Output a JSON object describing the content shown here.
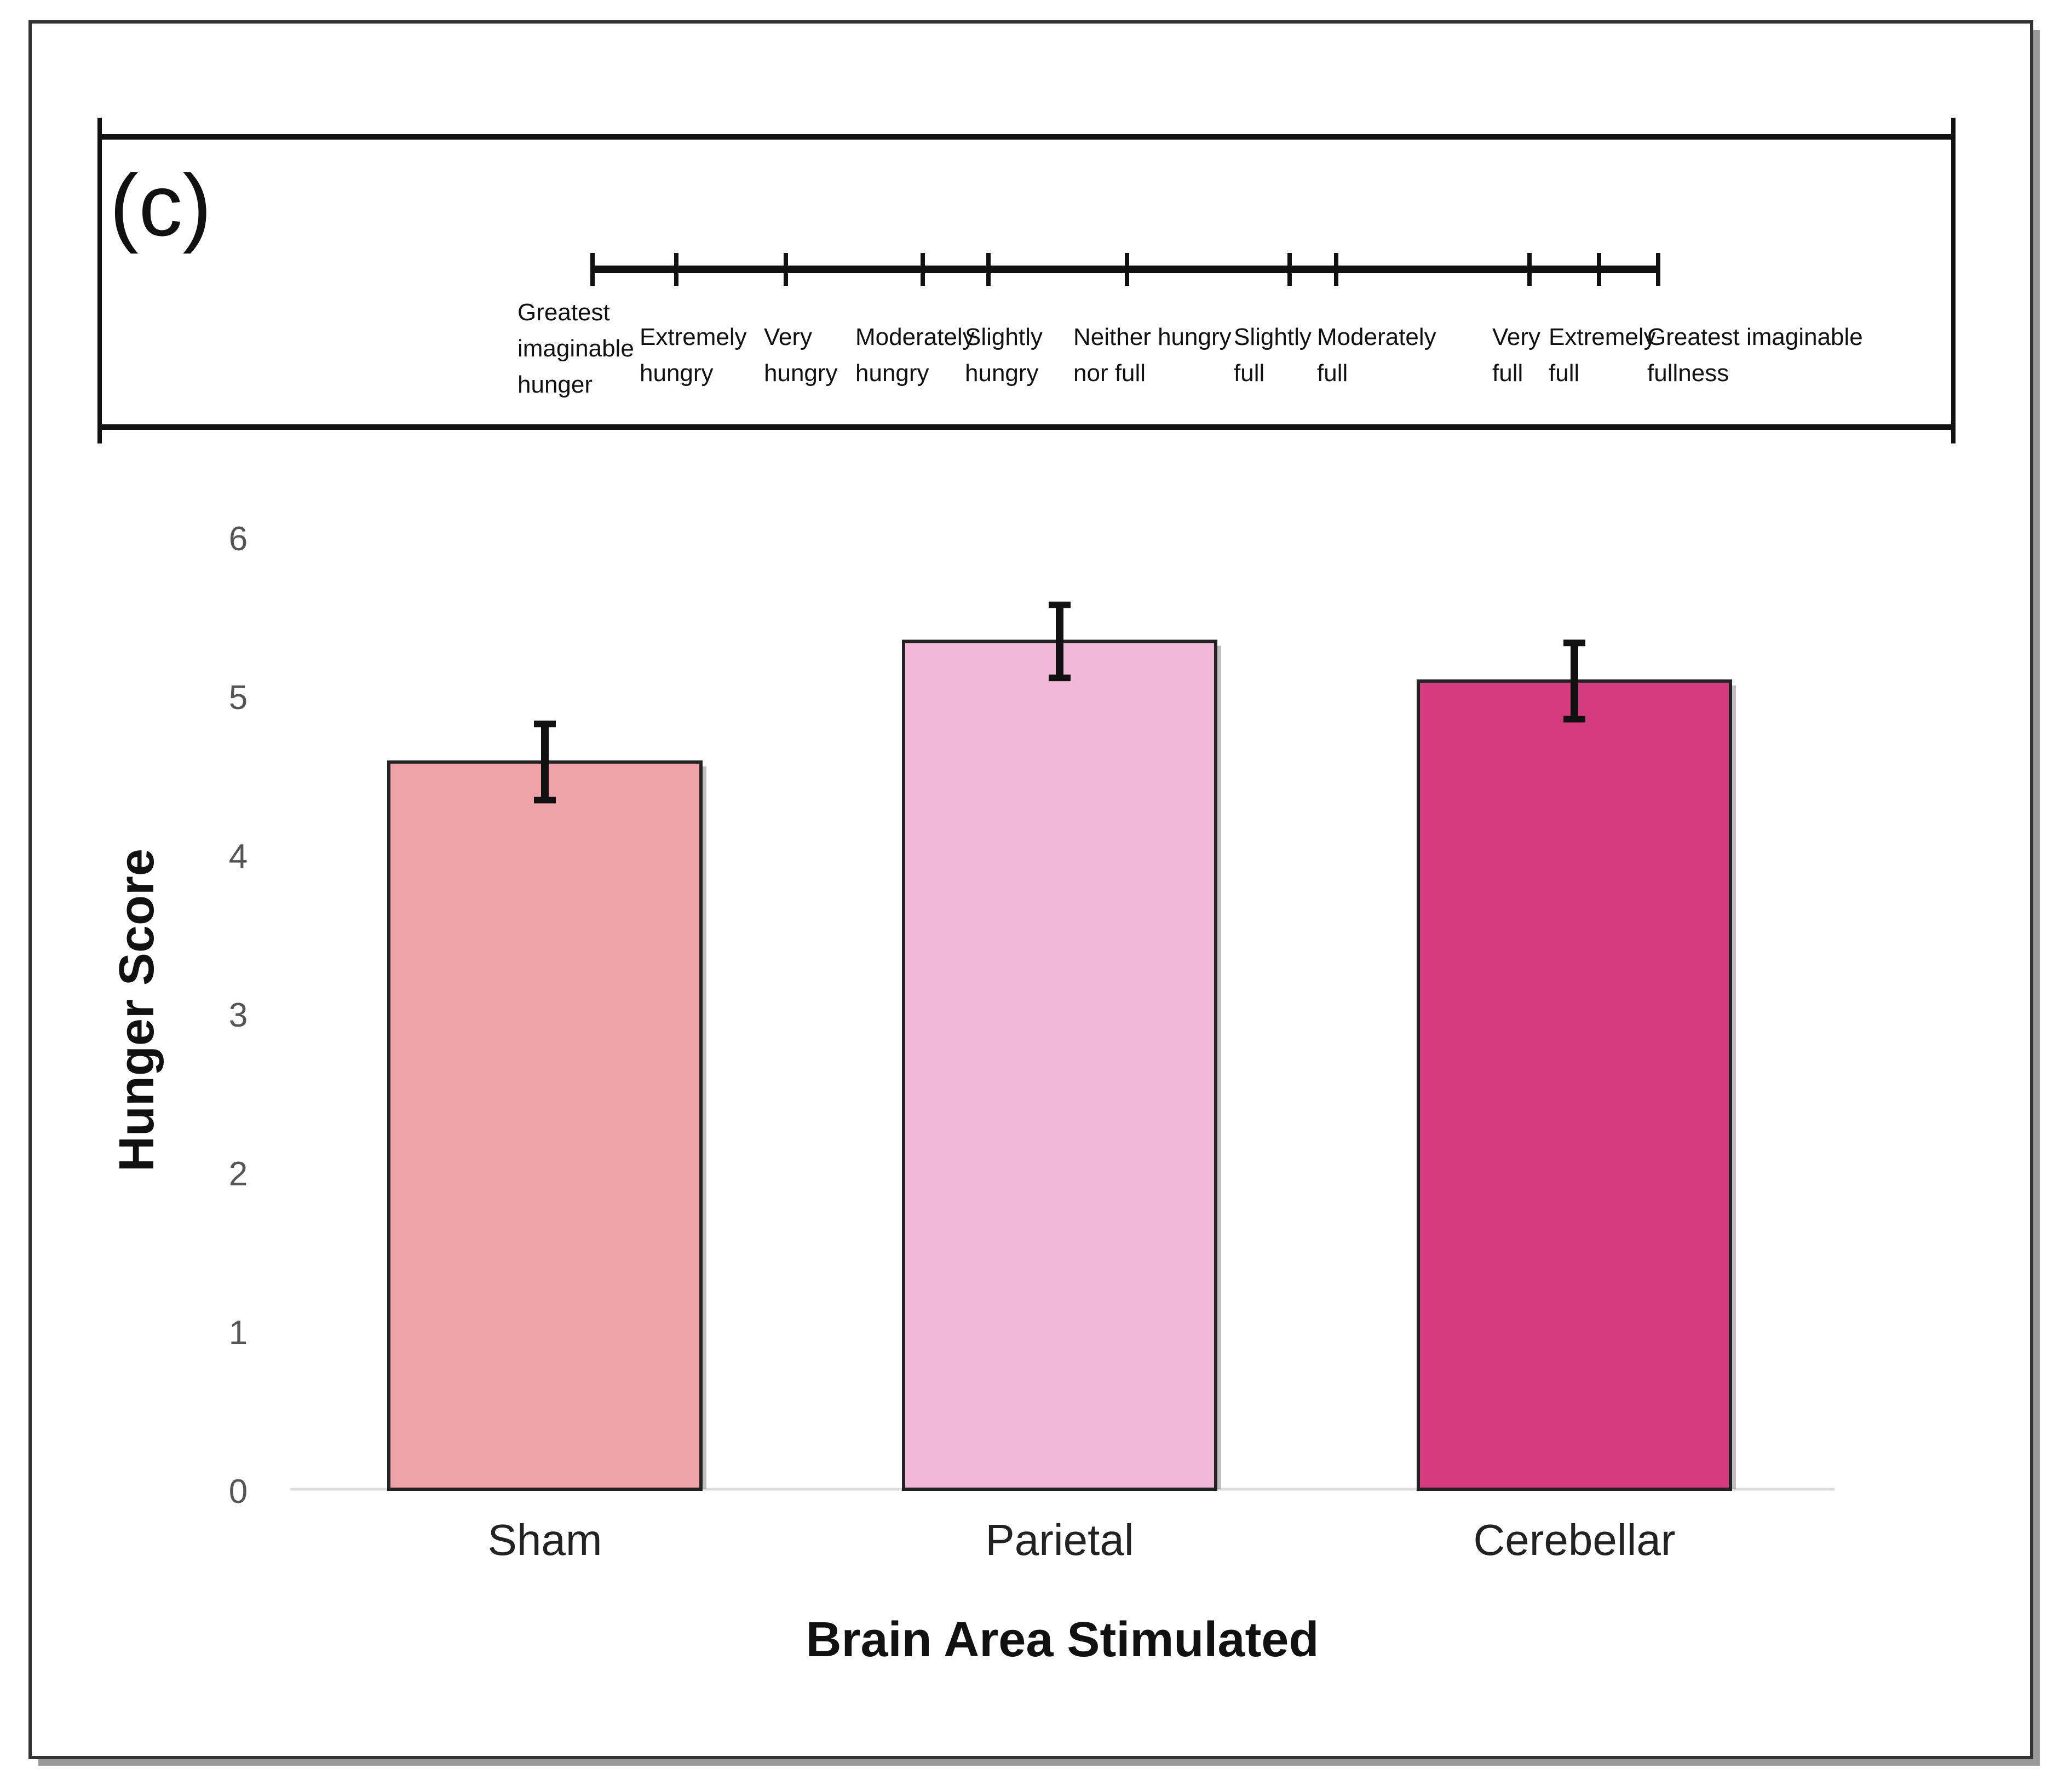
{
  "panel_label": "(c)",
  "scale": {
    "anchors": [
      {
        "position": 0,
        "lines": [
          "Greatest",
          "imaginable",
          "hunger"
        ]
      },
      {
        "position": 1,
        "lines": [
          "Extremely",
          "hungry"
        ]
      },
      {
        "position": 2,
        "lines": [
          "Very",
          "hungry"
        ]
      },
      {
        "position": 3,
        "lines": [
          "Moderately",
          "hungry"
        ]
      },
      {
        "position": 4,
        "lines": [
          "Slightly",
          "hungry"
        ]
      },
      {
        "position": 5,
        "lines": [
          "Neither hungry",
          "nor full"
        ]
      },
      {
        "position": 6,
        "lines": [
          "Slightly",
          "full"
        ]
      },
      {
        "position": 7,
        "lines": [
          "Moderately",
          "full"
        ]
      },
      {
        "position": 8,
        "lines": [
          "Very",
          "full"
        ]
      },
      {
        "position": 9,
        "lines": [
          "Extremely",
          "full"
        ]
      },
      {
        "position": 10,
        "lines": [
          "Greatest imaginable",
          "fullness"
        ]
      }
    ]
  },
  "chart_data": {
    "type": "bar",
    "categories": [
      "Sham",
      "Parietal",
      "Cerebellar"
    ],
    "values": [
      4.58,
      5.34,
      5.09
    ],
    "errors": [
      0.24,
      0.23,
      0.24
    ],
    "colors": [
      "#efa3a9",
      "#f0b7d6",
      "#d63b80"
    ],
    "xlabel": "Brain Area Stimulated",
    "ylabel": "Hunger Score",
    "ylim": [
      0,
      6
    ],
    "yticks": [
      0,
      1,
      2,
      3,
      4,
      5,
      6
    ],
    "grid": false,
    "legend": "none"
  }
}
